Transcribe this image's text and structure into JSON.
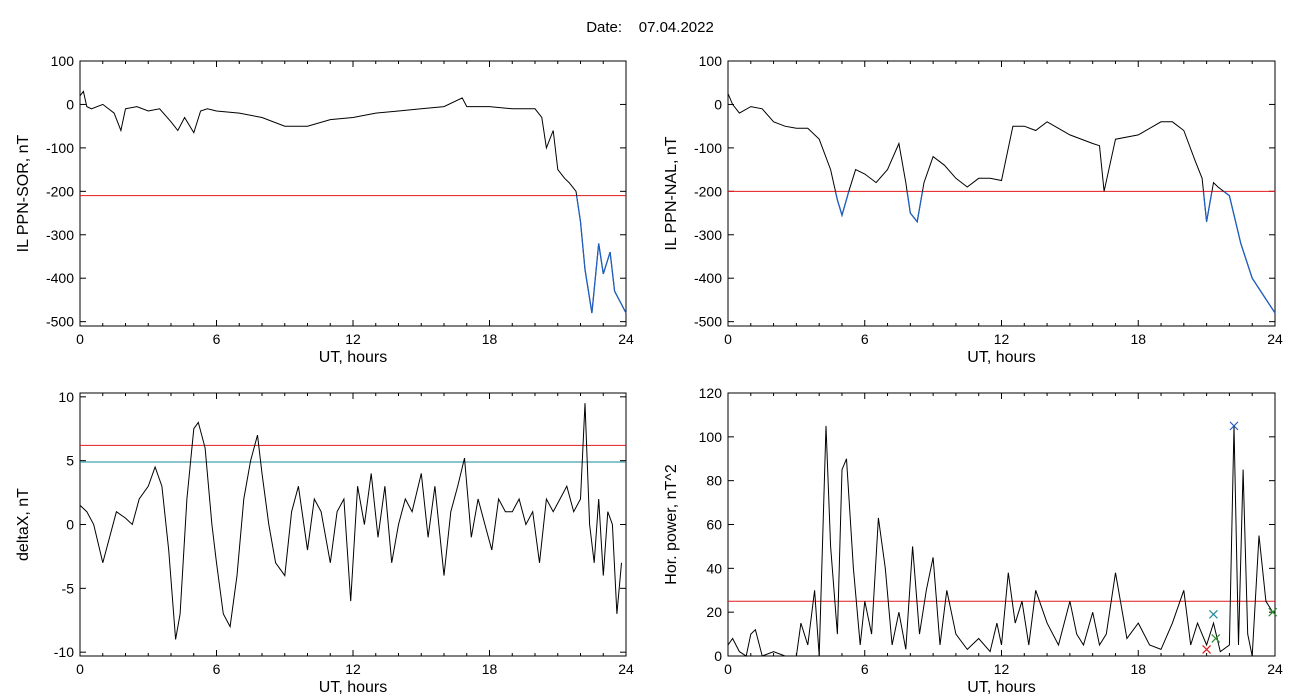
{
  "header": {
    "date_label": "Date:",
    "date_value": "07.04.2022"
  },
  "chart_data": [
    {
      "id": "il-ppn-sor",
      "type": "line",
      "ylabel": "IL PPN-SOR, nT",
      "xlabel": "UT, hours",
      "xlim": [
        0,
        24
      ],
      "ylim": [
        -510,
        100
      ],
      "xticks": [
        0,
        6,
        12,
        18,
        24
      ],
      "yticks": [
        100,
        0,
        -100,
        -200,
        -300,
        -400,
        -500
      ],
      "threshold": {
        "value": -210,
        "color": "#e31a1c"
      },
      "below_threshold_color": "#1f5fbf",
      "series": [
        {
          "color": "#000000",
          "x": [
            0,
            0.15,
            0.3,
            0.5,
            1,
            1.5,
            1.8,
            2,
            2.5,
            3,
            3.5,
            4,
            4.3,
            4.6,
            5,
            5.3,
            5.6,
            6,
            7,
            8,
            9,
            10,
            11,
            12,
            13,
            14,
            15,
            16,
            16.8,
            17,
            18,
            19,
            20,
            20.3,
            20.5,
            20.8,
            21,
            21.3,
            21.5,
            21.8,
            22,
            22.2,
            22.5,
            22.8,
            23,
            23.3,
            23.5,
            23.8,
            24
          ],
          "y": [
            20,
            30,
            -5,
            -10,
            0,
            -20,
            -60,
            -10,
            -5,
            -15,
            -10,
            -40,
            -60,
            -30,
            -65,
            -15,
            -10,
            -15,
            -20,
            -30,
            -50,
            -50,
            -35,
            -30,
            -20,
            -15,
            -10,
            -5,
            15,
            -5,
            -5,
            -10,
            -10,
            -30,
            -100,
            -60,
            -150,
            -170,
            -180,
            -200,
            -270,
            -380,
            -480,
            -320,
            -390,
            -340,
            -430,
            -460,
            -480
          ]
        }
      ]
    },
    {
      "id": "il-ppn-nal",
      "type": "line",
      "ylabel": "IL PPN-NAL, nT",
      "xlabel": "UT, hours",
      "xlim": [
        0,
        24
      ],
      "ylim": [
        -510,
        100
      ],
      "xticks": [
        0,
        6,
        12,
        18,
        24
      ],
      "yticks": [
        100,
        0,
        -100,
        -200,
        -300,
        -400,
        -500
      ],
      "threshold": {
        "value": -200,
        "color": "#e31a1c"
      },
      "below_threshold_color": "#1f5fbf",
      "series": [
        {
          "color": "#000000",
          "x": [
            0,
            0.2,
            0.5,
            1,
            1.5,
            2,
            2.5,
            3,
            3.5,
            4,
            4.5,
            4.8,
            5,
            5.3,
            5.6,
            6,
            6.5,
            7,
            7.5,
            7.8,
            8,
            8.3,
            8.6,
            9,
            9.5,
            10,
            10.5,
            11,
            11.5,
            12,
            12.5,
            13,
            13.5,
            14,
            15,
            16,
            16.3,
            16.5,
            17,
            18,
            19,
            19.5,
            20,
            20.5,
            20.8,
            21,
            21.3,
            21.5,
            22,
            22.5,
            23,
            23.5,
            24
          ],
          "y": [
            25,
            0,
            -20,
            -5,
            -10,
            -40,
            -50,
            -55,
            -55,
            -80,
            -150,
            -220,
            -255,
            -200,
            -150,
            -160,
            -180,
            -150,
            -90,
            -180,
            -250,
            -270,
            -180,
            -120,
            -140,
            -170,
            -190,
            -170,
            -170,
            -175,
            -50,
            -50,
            -60,
            -40,
            -70,
            -90,
            -95,
            -200,
            -80,
            -70,
            -40,
            -40,
            -60,
            -130,
            -170,
            -270,
            -180,
            -190,
            -210,
            -320,
            -400,
            -440,
            -480
          ]
        }
      ]
    },
    {
      "id": "delta-x",
      "type": "line",
      "ylabel": "deltaX, nT",
      "xlabel": "UT, hours",
      "xlim": [
        0,
        24
      ],
      "ylim": [
        -10.3,
        10.3
      ],
      "xticks": [
        0,
        6,
        12,
        18,
        24
      ],
      "yticks": [
        10,
        5,
        0,
        -5,
        -10
      ],
      "thresholds": [
        {
          "value": 6.2,
          "color": "#e31a1c"
        },
        {
          "value": 4.9,
          "color": "#1a8a9a"
        }
      ],
      "series": [
        {
          "color": "#000000",
          "x": [
            0,
            0.3,
            0.6,
            1,
            1.3,
            1.6,
            2,
            2.3,
            2.6,
            3,
            3.3,
            3.6,
            3.9,
            4.2,
            4.4,
            4.7,
            5,
            5.2,
            5.5,
            5.8,
            6,
            6.3,
            6.6,
            6.9,
            7.2,
            7.5,
            7.8,
            8,
            8.3,
            8.6,
            9,
            9.3,
            9.6,
            10,
            10.3,
            10.6,
            11,
            11.3,
            11.6,
            11.9,
            12.2,
            12.5,
            12.8,
            13.1,
            13.4,
            13.7,
            14,
            14.3,
            14.6,
            15,
            15.3,
            15.6,
            16,
            16.3,
            16.6,
            16.9,
            17.2,
            17.5,
            17.8,
            18.1,
            18.4,
            18.7,
            19,
            19.3,
            19.6,
            19.9,
            20.2,
            20.5,
            20.8,
            21.1,
            21.4,
            21.7,
            22,
            22.2,
            22.4,
            22.6,
            22.8,
            23,
            23.2,
            23.4,
            23.6,
            23.8
          ],
          "y": [
            1.5,
            1,
            0,
            -3,
            -1,
            1,
            0.5,
            0,
            2,
            3,
            4.5,
            3,
            -2,
            -9,
            -7,
            2,
            7.5,
            8,
            6,
            0,
            -3,
            -7,
            -8,
            -4,
            2,
            5,
            7,
            4,
            0,
            -3,
            -4,
            1,
            3,
            -2,
            2,
            1,
            -3,
            1,
            2,
            -6,
            3,
            0,
            4,
            -1,
            3,
            -3,
            0,
            2,
            1,
            4,
            -1,
            3,
            -4,
            1,
            3,
            5.2,
            -1,
            2,
            0,
            -2,
            2,
            1,
            1,
            2,
            0,
            1,
            -3,
            2,
            1,
            2,
            3,
            1,
            2,
            9.5,
            0,
            -3,
            2,
            -4,
            1,
            0,
            -7,
            -3
          ]
        }
      ]
    },
    {
      "id": "hor-power",
      "type": "line",
      "ylabel": "Hor. power, nT^2",
      "xlabel": "UT, hours",
      "xlim": [
        0,
        24
      ],
      "ylim": [
        0,
        120
      ],
      "xticks": [
        0,
        6,
        12,
        18,
        24
      ],
      "yticks": [
        0,
        20,
        40,
        60,
        80,
        100,
        120
      ],
      "threshold": {
        "value": 25,
        "color": "#e31a1c"
      },
      "markers": [
        {
          "x": 22.2,
          "y": 105,
          "symbol": "x",
          "color": "#1f5fbf"
        },
        {
          "x": 21.3,
          "y": 19,
          "symbol": "x",
          "color": "#1a8a9a"
        },
        {
          "x": 21.4,
          "y": 8,
          "symbol": "x",
          "color": "#2e8b2e"
        },
        {
          "x": 21.0,
          "y": 3,
          "symbol": "x",
          "color": "#e31a1c"
        },
        {
          "x": 23.9,
          "y": 20,
          "symbol": "x",
          "color": "#2e8b2e"
        }
      ],
      "series": [
        {
          "color": "#000000",
          "x": [
            0,
            0.2,
            0.5,
            0.8,
            1,
            1.2,
            1.5,
            2,
            2.5,
            3,
            3.2,
            3.5,
            3.8,
            4,
            4.3,
            4.5,
            4.8,
            5,
            5.2,
            5.5,
            5.8,
            6,
            6.3,
            6.6,
            6.9,
            7.2,
            7.5,
            7.8,
            8.1,
            8.4,
            8.7,
            9,
            9.3,
            9.6,
            10,
            10.5,
            11,
            11.5,
            11.8,
            12,
            12.3,
            12.6,
            12.9,
            13.2,
            13.5,
            14,
            14.5,
            15,
            15.3,
            15.6,
            16,
            16.3,
            16.6,
            17,
            17.5,
            18,
            18.5,
            19,
            19.5,
            20,
            20.3,
            20.6,
            21,
            21.3,
            21.6,
            22,
            22.2,
            22.4,
            22.6,
            22.8,
            23,
            23.3,
            23.6,
            23.9
          ],
          "y": [
            5,
            8,
            2,
            0,
            10,
            12,
            0,
            2,
            0,
            0,
            15,
            5,
            30,
            0,
            105,
            50,
            10,
            85,
            90,
            40,
            5,
            25,
            10,
            63,
            40,
            5,
            20,
            3,
            50,
            10,
            30,
            45,
            5,
            30,
            10,
            3,
            8,
            2,
            15,
            5,
            38,
            15,
            25,
            5,
            30,
            15,
            5,
            25,
            10,
            5,
            20,
            5,
            10,
            38,
            8,
            15,
            5,
            3,
            15,
            30,
            5,
            15,
            5,
            15,
            2,
            5,
            105,
            5,
            85,
            10,
            0,
            55,
            25,
            20
          ]
        }
      ]
    }
  ]
}
